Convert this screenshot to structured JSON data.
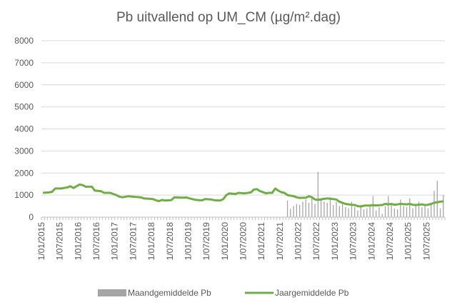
{
  "chart_data": {
    "type": "bar",
    "title": "Pb uitvallend op UM_CM (µg/m².dag)",
    "xlabel": "",
    "ylabel": "",
    "ylim": [
      0,
      8000
    ],
    "yticks": [
      "0",
      "1000",
      "2000",
      "3000",
      "4000",
      "5000",
      "6000",
      "7000",
      "8000"
    ],
    "x_range": [
      "2015-01",
      "2025-12"
    ],
    "x_tick_labels": [
      "1/01/2015",
      "1/07/2015",
      "1/01/2016",
      "1/07/2016",
      "1/01/2017",
      "1/07/2017",
      "1/01/2018",
      "1/07/2018",
      "1/01/2019",
      "1/07/2019",
      "1/01/2020",
      "1/07/2020",
      "1/01/2021",
      "1/07/2021",
      "1/01/2022",
      "1/07/2022",
      "1/01/2023",
      "1/07/2023",
      "1/01/2024",
      "1/07/2024",
      "1/01/2025",
      "1/07/2025"
    ],
    "grid": true,
    "legend_position": "bottom",
    "colors": {
      "bars": "#a5a5a5",
      "line": "#70ad47",
      "grid": "#d9d9d9",
      "axis": "#bfbfbf"
    },
    "series": [
      {
        "name": "Maandgemiddelde Pb",
        "type": "bar",
        "points": [
          [
            "2021-09",
            750
          ],
          [
            "2021-10",
            380
          ],
          [
            "2021-11",
            500
          ],
          [
            "2021-12",
            600
          ],
          [
            "2022-01",
            550
          ],
          [
            "2022-02",
            700
          ],
          [
            "2022-03",
            800
          ],
          [
            "2022-04",
            650
          ],
          [
            "2022-05",
            900
          ],
          [
            "2022-06",
            600
          ],
          [
            "2022-07",
            2050
          ],
          [
            "2022-08",
            800
          ],
          [
            "2022-09",
            700
          ],
          [
            "2022-10",
            650
          ],
          [
            "2022-11",
            900
          ],
          [
            "2022-12",
            550
          ],
          [
            "2023-01",
            700
          ],
          [
            "2023-02",
            500
          ],
          [
            "2023-03",
            600
          ],
          [
            "2023-04",
            450
          ],
          [
            "2023-05",
            400
          ],
          [
            "2023-06",
            700
          ],
          [
            "2023-07",
            450
          ],
          [
            "2023-08",
            300
          ],
          [
            "2023-09",
            550
          ],
          [
            "2023-10",
            350
          ],
          [
            "2023-11",
            400
          ],
          [
            "2023-12",
            500
          ],
          [
            "2024-01",
            950
          ],
          [
            "2024-02",
            300
          ],
          [
            "2024-03",
            450
          ],
          [
            "2024-04",
            150
          ],
          [
            "2024-05",
            500
          ],
          [
            "2024-06",
            950
          ],
          [
            "2024-07",
            550
          ],
          [
            "2024-08",
            400
          ],
          [
            "2024-09",
            350
          ],
          [
            "2024-10",
            800
          ],
          [
            "2024-11",
            500
          ],
          [
            "2024-12",
            450
          ],
          [
            "2025-01",
            850
          ],
          [
            "2025-02",
            400
          ],
          [
            "2025-03",
            550
          ],
          [
            "2025-04",
            700
          ],
          [
            "2025-05",
            450
          ],
          [
            "2025-06",
            550
          ],
          [
            "2025-07",
            400
          ],
          [
            "2025-08",
            600
          ],
          [
            "2025-09",
            1200
          ],
          [
            "2025-10",
            1650
          ],
          [
            "2025-11",
            400
          ],
          [
            "2025-12",
            1000
          ]
        ]
      },
      {
        "name": "Jaargemiddelde Pb",
        "type": "line",
        "points": [
          [
            "2015-01",
            1100
          ],
          [
            "2015-03",
            1120
          ],
          [
            "2015-04",
            1150
          ],
          [
            "2015-05",
            1300
          ],
          [
            "2015-07",
            1300
          ],
          [
            "2015-09",
            1350
          ],
          [
            "2015-10",
            1400
          ],
          [
            "2015-11",
            1320
          ],
          [
            "2016-01",
            1480
          ],
          [
            "2016-02",
            1450
          ],
          [
            "2016-03",
            1380
          ],
          [
            "2016-05",
            1380
          ],
          [
            "2016-06",
            1200
          ],
          [
            "2016-08",
            1180
          ],
          [
            "2016-09",
            1100
          ],
          [
            "2016-11",
            1100
          ],
          [
            "2016-12",
            1050
          ],
          [
            "2017-01",
            1000
          ],
          [
            "2017-02",
            930
          ],
          [
            "2017-03",
            900
          ],
          [
            "2017-05",
            950
          ],
          [
            "2017-07",
            920
          ],
          [
            "2017-09",
            900
          ],
          [
            "2017-10",
            850
          ],
          [
            "2017-12",
            830
          ],
          [
            "2018-01",
            820
          ],
          [
            "2018-02",
            760
          ],
          [
            "2018-03",
            730
          ],
          [
            "2018-04",
            780
          ],
          [
            "2018-05",
            750
          ],
          [
            "2018-07",
            770
          ],
          [
            "2018-08",
            900
          ],
          [
            "2018-10",
            880
          ],
          [
            "2018-12",
            890
          ],
          [
            "2019-01",
            850
          ],
          [
            "2019-03",
            780
          ],
          [
            "2019-05",
            760
          ],
          [
            "2019-06",
            820
          ],
          [
            "2019-08",
            800
          ],
          [
            "2019-09",
            770
          ],
          [
            "2019-11",
            750
          ],
          [
            "2019-12",
            820
          ],
          [
            "2020-01",
            1000
          ],
          [
            "2020-02",
            1080
          ],
          [
            "2020-04",
            1050
          ],
          [
            "2020-05",
            1100
          ],
          [
            "2020-07",
            1080
          ],
          [
            "2020-09",
            1120
          ],
          [
            "2020-10",
            1250
          ],
          [
            "2020-11",
            1270
          ],
          [
            "2020-12",
            1180
          ],
          [
            "2021-01",
            1130
          ],
          [
            "2021-02",
            1080
          ],
          [
            "2021-03",
            1100
          ],
          [
            "2021-04",
            1100
          ],
          [
            "2021-05",
            1300
          ],
          [
            "2021-06",
            1200
          ],
          [
            "2021-07",
            1130
          ],
          [
            "2021-08",
            1100
          ],
          [
            "2021-09",
            1000
          ],
          [
            "2021-11",
            950
          ],
          [
            "2021-12",
            900
          ],
          [
            "2022-01",
            870
          ],
          [
            "2022-03",
            880
          ],
          [
            "2022-04",
            950
          ],
          [
            "2022-05",
            900
          ],
          [
            "2022-06",
            800
          ],
          [
            "2022-07",
            780
          ],
          [
            "2022-09",
            830
          ],
          [
            "2022-10",
            850
          ],
          [
            "2022-12",
            820
          ],
          [
            "2023-01",
            800
          ],
          [
            "2023-02",
            700
          ],
          [
            "2023-03",
            650
          ],
          [
            "2023-04",
            600
          ],
          [
            "2023-06",
            560
          ],
          [
            "2023-07",
            550
          ],
          [
            "2023-08",
            500
          ],
          [
            "2023-09",
            480
          ],
          [
            "2023-10",
            520
          ],
          [
            "2023-12",
            530
          ],
          [
            "2024-01",
            540
          ],
          [
            "2024-02",
            530
          ],
          [
            "2024-04",
            550
          ],
          [
            "2024-05",
            600
          ],
          [
            "2024-06",
            580
          ],
          [
            "2024-07",
            600
          ],
          [
            "2024-08",
            560
          ],
          [
            "2024-10",
            600
          ],
          [
            "2024-12",
            580
          ],
          [
            "2025-01",
            600
          ],
          [
            "2025-02",
            560
          ],
          [
            "2025-03",
            550
          ],
          [
            "2025-05",
            580
          ],
          [
            "2025-06",
            550
          ],
          [
            "2025-07",
            560
          ],
          [
            "2025-08",
            600
          ],
          [
            "2025-09",
            650
          ],
          [
            "2025-11",
            700
          ],
          [
            "2025-12",
            720
          ]
        ]
      }
    ]
  }
}
